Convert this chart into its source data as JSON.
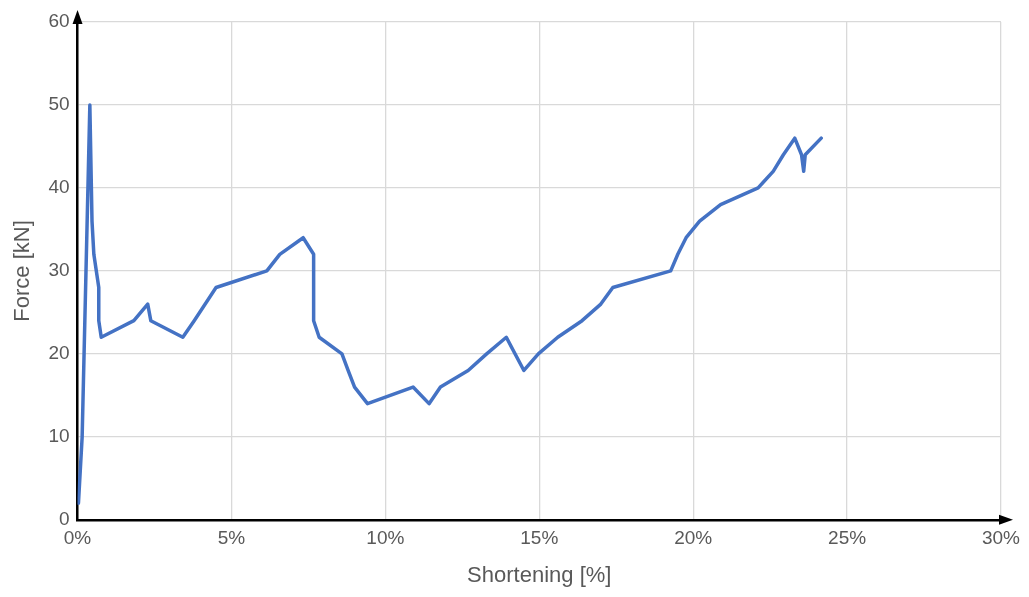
{
  "chart_data": {
    "type": "line",
    "xlabel": "Shortening [%]",
    "ylabel": "Force [kN]",
    "grid": true,
    "legend": false,
    "marker": "none",
    "line_style": "solid",
    "xlim": [
      0,
      30
    ],
    "xticks": [
      {
        "value": 0,
        "label": "0%"
      },
      {
        "value": 5,
        "label": "5%"
      },
      {
        "value": 10,
        "label": "10%"
      },
      {
        "value": 15,
        "label": "15%"
      },
      {
        "value": 20,
        "label": "20%"
      },
      {
        "value": 25,
        "label": "25%"
      },
      {
        "value": 30,
        "label": "30%"
      }
    ],
    "ylim": [
      0,
      60
    ],
    "yticks": [
      0,
      10,
      20,
      30,
      40,
      50,
      60
    ],
    "series": [
      {
        "color": "#4472c4",
        "x": [
          0.03,
          0.15,
          0.4,
          0.47,
          0.53,
          0.69,
          0.69,
          0.77,
          1.83,
          2.28,
          2.38,
          3.42,
          3.79,
          4.5,
          6.15,
          6.57,
          7.33,
          7.67,
          7.67,
          7.85,
          8.59,
          8.79,
          9.0,
          9.42,
          10.9,
          11.42,
          11.79,
          12.69,
          13.29,
          13.93,
          14.5,
          14.97,
          15.6,
          16.39,
          17.0,
          17.39,
          19.27,
          19.5,
          19.77,
          20.21,
          20.89,
          22.11,
          22.6,
          22.93,
          23.3,
          23.52,
          23.59,
          23.64,
          24.16
        ],
        "values": [
          2,
          10,
          50,
          36,
          32,
          28,
          24,
          22,
          24,
          26,
          24,
          22,
          24,
          28,
          30,
          32,
          34,
          32,
          24,
          22,
          20,
          18,
          16,
          14,
          16,
          14,
          16,
          18,
          20,
          22,
          18,
          20,
          22,
          24,
          26,
          28,
          30,
          32,
          34,
          36,
          38,
          40,
          42,
          44,
          46,
          44,
          42,
          44,
          46
        ]
      }
    ]
  }
}
